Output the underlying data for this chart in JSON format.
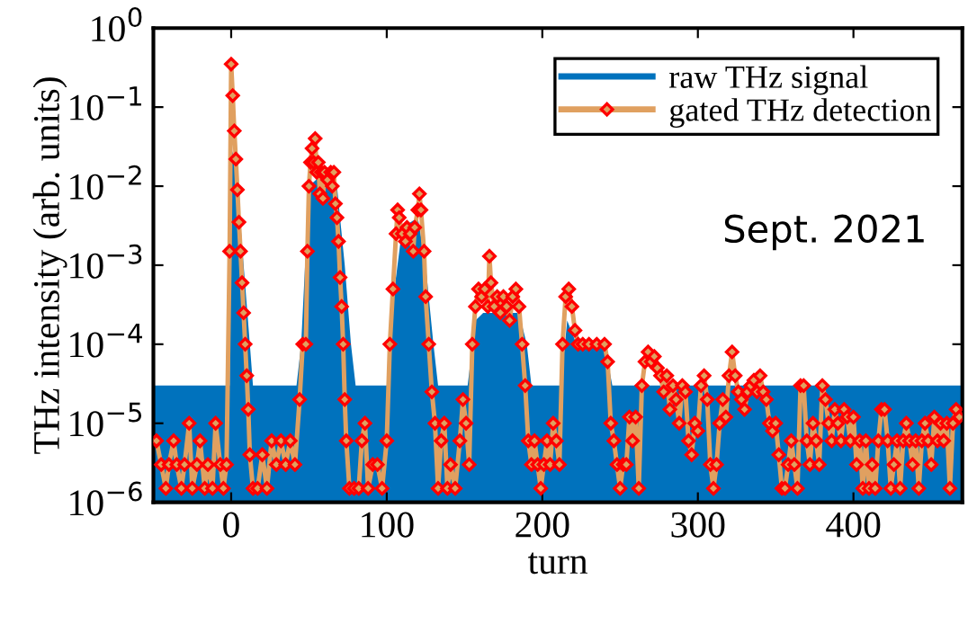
{
  "chart_data": {
    "type": "line",
    "xlabel": "turn",
    "ylabel": "THz intensity (arb. units)",
    "log": "y",
    "xlim": [
      -50,
      470
    ],
    "xticks": [
      0,
      100,
      200,
      300,
      400
    ],
    "ylim": [
      1e-06,
      1
    ],
    "yticks": [
      {
        "value": 1e-06,
        "label": "10$^{−6}$"
      },
      {
        "value": 1e-05,
        "label": "10$^{−5}$"
      },
      {
        "value": 0.0001,
        "label": "10$^{−4}$"
      },
      {
        "value": 0.001,
        "label": "10$^{−3}$"
      },
      {
        "value": 0.01,
        "label": "10$^{−2}$"
      },
      {
        "value": 0.1,
        "label": "10$^{−1}$"
      },
      {
        "value": 1,
        "label": "10$^{0}$"
      }
    ],
    "grid": false,
    "legend": "top right",
    "annotations": [
      "Sept. 2021"
    ],
    "series": [
      {
        "name": "raw THz signal",
        "type": "area",
        "color": "#0072bd",
        "marker": "none",
        "x": [
          -50,
          -1,
          0,
          3,
          8,
          12,
          14,
          42,
          45,
          50,
          60,
          68,
          73,
          77,
          80,
          100,
          105,
          110,
          120,
          125,
          130,
          133,
          152,
          157,
          162,
          185,
          190,
          193,
          212,
          216,
          222,
          240,
          245,
          470
        ],
        "values": [
          3e-05,
          3e-05,
          0.03,
          0.02,
          0.001,
          0.0001,
          3e-05,
          3e-05,
          0.0001,
          0.01,
          0.015,
          0.01,
          0.001,
          0.0001,
          3e-05,
          3e-05,
          0.0005,
          0.003,
          0.004,
          0.001,
          0.0001,
          3e-05,
          3e-05,
          0.0002,
          0.00025,
          0.00025,
          0.0001,
          3e-05,
          3e-05,
          0.0002,
          0.0001,
          0.0001,
          3e-05,
          3e-05
        ]
      },
      {
        "name": "gated THz detection",
        "color": "#e0a060",
        "marker": "diamond",
        "line_style": "solid",
        "x": [
          -48,
          -45,
          -42,
          -40,
          -37,
          -35,
          -32,
          -30,
          -27,
          -25,
          -22,
          -20,
          -17,
          -15,
          -12,
          -10,
          -7,
          -5,
          -3,
          -1,
          0,
          1,
          2,
          3,
          4,
          5,
          6,
          7,
          8,
          9,
          10,
          11,
          12,
          14,
          17,
          20,
          23,
          26,
          29,
          32,
          35,
          38,
          41,
          44,
          46,
          48,
          49,
          50,
          51,
          52,
          53,
          54,
          55,
          56,
          57,
          58,
          59,
          60,
          62,
          64,
          65,
          66,
          67,
          68,
          69,
          70,
          71,
          72,
          73,
          74,
          76,
          79,
          82,
          84,
          86,
          88,
          91,
          94,
          97,
          100,
          102,
          104,
          106,
          107,
          108,
          110,
          112,
          113,
          115,
          117,
          118,
          120,
          121,
          122,
          124,
          125,
          127,
          129,
          131,
          133,
          135,
          137,
          139,
          141,
          144,
          147,
          149,
          151,
          153,
          155,
          157,
          159,
          161,
          163,
          165,
          166,
          167,
          169,
          171,
          173,
          175,
          177,
          179,
          181,
          183,
          185,
          187,
          189,
          191,
          193,
          195,
          197,
          199,
          201,
          203,
          205,
          207,
          209,
          211,
          213,
          215,
          217,
          219,
          221,
          223,
          226,
          230,
          235,
          240,
          242,
          244,
          246,
          248,
          250,
          252,
          254,
          256,
          258,
          260,
          262,
          264,
          266,
          268,
          270,
          272,
          274,
          276,
          278,
          280,
          282,
          284,
          286,
          288,
          290,
          292,
          294,
          296,
          298,
          300,
          302,
          304,
          306,
          308,
          310,
          312,
          314,
          316,
          318,
          320,
          322,
          324,
          326,
          328,
          330,
          332,
          334,
          336,
          338,
          340,
          342,
          344,
          346,
          348,
          350,
          352,
          354,
          356,
          358,
          360,
          362,
          364,
          366,
          368,
          370,
          372,
          374,
          376,
          378,
          380,
          382,
          384,
          386,
          388,
          390,
          392,
          394,
          396,
          398,
          400,
          402,
          404,
          406,
          408,
          410,
          412,
          414,
          416,
          418,
          420,
          422,
          424,
          426,
          428,
          430,
          432,
          434,
          436,
          438,
          440,
          442,
          444,
          446,
          448,
          450,
          452,
          454,
          456,
          458,
          460,
          462,
          464,
          466,
          468
        ],
        "values": [
          6e-06,
          3e-06,
          1.5e-06,
          3e-06,
          6e-06,
          3e-06,
          1.5e-06,
          3e-06,
          1e-05,
          1.5e-06,
          3e-06,
          6e-06,
          1.5e-06,
          3e-06,
          1.5e-06,
          1e-05,
          3e-06,
          1.5e-06,
          3e-06,
          0.0015,
          0.35,
          0.14,
          0.05,
          0.022,
          0.009,
          0.0035,
          0.0015,
          0.0006,
          0.00025,
          0.0001,
          4e-05,
          1.5e-05,
          4e-06,
          1.5e-06,
          1.5e-06,
          4e-06,
          1.5e-06,
          6e-06,
          3e-06,
          6e-06,
          3e-06,
          6e-06,
          3e-06,
          2e-05,
          0.0001,
          0.0001,
          0.0015,
          0.01,
          0.02,
          0.03,
          0.02,
          0.04,
          0.015,
          0.02,
          0.008,
          0.015,
          0.007,
          0.015,
          0.012,
          0.015,
          0.01,
          0.015,
          0.006,
          0.004,
          0.002,
          0.0007,
          0.0003,
          0.0001,
          2e-05,
          6e-06,
          1.5e-06,
          1.5e-06,
          1.5e-06,
          6e-06,
          1e-05,
          1.5e-06,
          3e-06,
          3e-06,
          1.5e-06,
          6e-06,
          0.0001,
          0.0005,
          0.0025,
          0.005,
          0.004,
          0.0025,
          0.002,
          0.003,
          0.0025,
          0.0015,
          0.003,
          0.005,
          0.008,
          0.005,
          0.0015,
          0.0004,
          0.0001,
          2.5e-05,
          1e-05,
          1.5e-06,
          6e-06,
          1e-05,
          1.5e-06,
          3e-06,
          1.5e-06,
          6e-06,
          2e-05,
          1e-05,
          3e-06,
          0.0001,
          0.0003,
          0.0005,
          0.0004,
          0.0005,
          0.0003,
          0.0013,
          0.0006,
          0.0003,
          0.0004,
          0.00025,
          0.0004,
          0.0003,
          0.0002,
          0.0004,
          0.0005,
          0.0003,
          0.0001,
          3e-05,
          6e-06,
          3e-06,
          6e-06,
          3e-06,
          1.5e-06,
          3e-06,
          6e-06,
          3e-06,
          1e-05,
          6e-06,
          3e-06,
          0.0001,
          0.0004,
          0.0005,
          0.0003,
          0.00015,
          0.0001,
          0.0001,
          0.0001,
          0.0001,
          0.0001,
          6e-05,
          1e-05,
          6e-06,
          3e-06,
          1.5e-06,
          3e-06,
          3e-06,
          1.2e-05,
          6e-06,
          1.2e-05,
          1.5e-06,
          3e-05,
          6e-05,
          8e-05,
          6e-05,
          7e-05,
          5e-05,
          4e-05,
          2.5e-05,
          4e-05,
          1.5e-05,
          3e-05,
          2e-05,
          1e-05,
          3e-05,
          2.5e-05,
          6e-06,
          4e-06,
          1e-05,
          8e-06,
          3e-05,
          4e-05,
          2e-05,
          3e-06,
          1.5e-06,
          3e-06,
          1e-05,
          2e-05,
          1.2e-05,
          4e-05,
          8e-05,
          4e-05,
          2.5e-05,
          2e-05,
          1.5e-05,
          2.5e-05,
          3e-05,
          3.5e-05,
          2.5e-05,
          4e-05,
          2.5e-05,
          2e-05,
          1e-05,
          8e-06,
          1e-05,
          4e-06,
          1.5e-06,
          1.5e-06,
          3e-06,
          6e-06,
          3e-06,
          1.5e-06,
          3e-05,
          3e-05,
          6e-06,
          3e-06,
          1e-05,
          6e-06,
          3e-06,
          3e-05,
          2e-05,
          1e-05,
          6e-06,
          1.5e-05,
          1e-05,
          6e-06,
          1.5e-05,
          1.2e-05,
          6e-06,
          1.2e-05,
          3e-06,
          6e-06,
          1.5e-06,
          6e-06,
          1.5e-06,
          3e-06,
          1.5e-06,
          6e-06,
          1.5e-05,
          1.5e-05,
          6e-06,
          1.5e-06,
          3e-06,
          6e-06,
          1.5e-06,
          6e-06,
          1e-05,
          6e-06,
          3e-06,
          6e-06,
          1.5e-06,
          6e-06,
          1e-05,
          6e-06,
          3e-06,
          1.2e-05,
          6e-06,
          1e-05,
          6e-06,
          1e-05,
          1.5e-06,
          1e-05,
          1.5e-05,
          1.2e-05
        ]
      }
    ]
  }
}
